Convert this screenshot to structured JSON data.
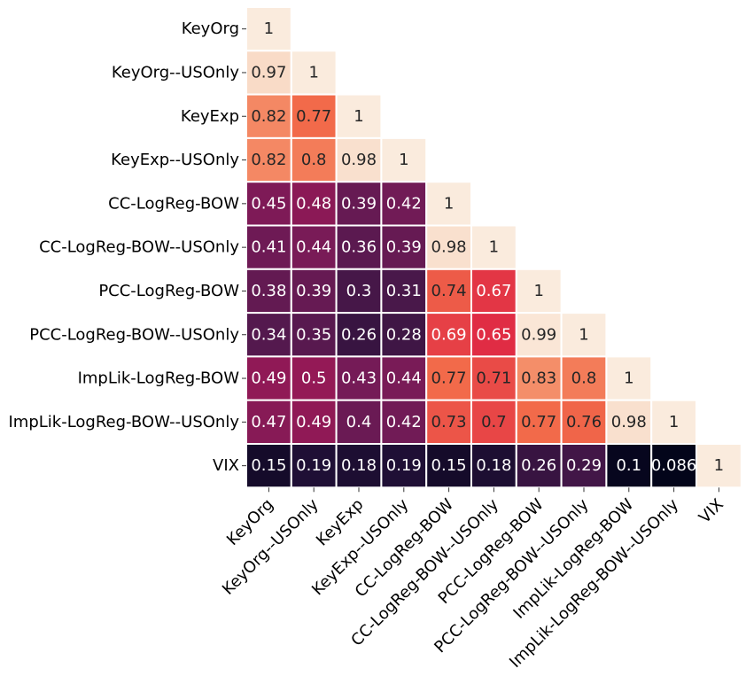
{
  "chart_data": {
    "type": "heatmap",
    "title": "",
    "xlabel": "",
    "ylabel": "",
    "colormap": "rocket",
    "value_range": [
      0.086,
      1
    ],
    "mask": "upper-triangle",
    "labels": [
      "KeyOrg",
      "KeyOrg--USOnly",
      "KeyExp",
      "KeyExp--USOnly",
      "CC-LogReg-BOW",
      "CC-LogReg-BOW--USOnly",
      "PCC-LogReg-BOW",
      "PCC-LogReg-BOW--USOnly",
      "ImpLik-LogReg-BOW",
      "ImpLik-LogReg-BOW--USOnly",
      "VIX"
    ],
    "rows": [
      [
        1
      ],
      [
        0.97,
        1
      ],
      [
        0.82,
        0.77,
        1
      ],
      [
        0.82,
        0.8,
        0.98,
        1
      ],
      [
        0.45,
        0.48,
        0.39,
        0.42,
        1
      ],
      [
        0.41,
        0.44,
        0.36,
        0.39,
        0.98,
        1
      ],
      [
        0.38,
        0.39,
        0.3,
        0.31,
        0.74,
        0.67,
        1
      ],
      [
        0.34,
        0.35,
        0.26,
        0.28,
        0.69,
        0.65,
        0.99,
        1
      ],
      [
        0.49,
        0.5,
        0.43,
        0.44,
        0.77,
        0.71,
        0.83,
        0.8,
        1
      ],
      [
        0.47,
        0.49,
        0.4,
        0.42,
        0.73,
        0.7,
        0.77,
        0.76,
        0.98,
        1
      ],
      [
        0.15,
        0.19,
        0.18,
        0.19,
        0.15,
        0.18,
        0.26,
        0.29,
        0.1,
        0.086,
        1
      ]
    ],
    "display": [
      [
        "1"
      ],
      [
        "0.97",
        "1"
      ],
      [
        "0.82",
        "0.77",
        "1"
      ],
      [
        "0.82",
        "0.8",
        "0.98",
        "1"
      ],
      [
        "0.45",
        "0.48",
        "0.39",
        "0.42",
        "1"
      ],
      [
        "0.41",
        "0.44",
        "0.36",
        "0.39",
        "0.98",
        "1"
      ],
      [
        "0.38",
        "0.39",
        "0.3",
        "0.31",
        "0.74",
        "0.67",
        "1"
      ],
      [
        "0.34",
        "0.35",
        "0.26",
        "0.28",
        "0.69",
        "0.65",
        "0.99",
        "1"
      ],
      [
        "0.49",
        "0.5",
        "0.43",
        "0.44",
        "0.77",
        "0.71",
        "0.83",
        "0.8",
        "1"
      ],
      [
        "0.47",
        "0.49",
        "0.4",
        "0.42",
        "0.73",
        "0.7",
        "0.77",
        "0.76",
        "0.98",
        "1"
      ],
      [
        "0.15",
        "0.19",
        "0.18",
        "0.19",
        "0.15",
        "0.18",
        "0.26",
        "0.29",
        "0.1",
        "0.086",
        "1"
      ]
    ]
  }
}
